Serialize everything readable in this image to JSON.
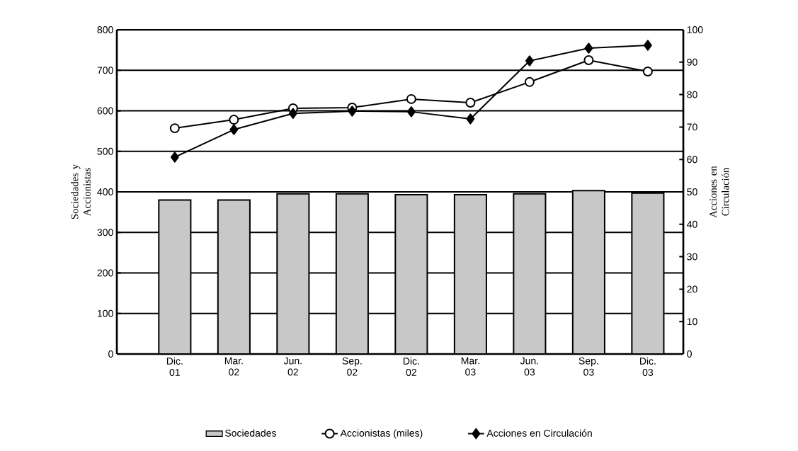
{
  "chart_data": {
    "type": "bar",
    "categories": [
      "Dic. 01",
      "Mar. 02",
      "Jun. 02",
      "Sep. 02",
      "Dic. 02",
      "Mar. 03",
      "Jun. 03",
      "Sep. 03",
      "Dic. 03"
    ],
    "ylabel": "Sociedades y Accionistas",
    "y2label": "Acciones en Circulación",
    "ylim": [
      0,
      800
    ],
    "yticks": [
      0,
      100,
      200,
      300,
      400,
      500,
      600,
      700,
      800
    ],
    "y2lim": [
      0,
      100
    ],
    "y2ticks": [
      0,
      10,
      20,
      30,
      40,
      50,
      60,
      70,
      80,
      90,
      100
    ],
    "grid": "y",
    "legend": "bottom",
    "series": [
      {
        "name": "Sociedades",
        "color": "#c8c8c8",
        "values": [
          380,
          380,
          395,
          395,
          393,
          393,
          395,
          403,
          397
        ]
      },
      {
        "name": "Accionistas (miles)",
        "type": "line",
        "color": "#000000",
        "marker": "circle",
        "values": [
          557,
          578,
          606,
          608,
          629,
          620,
          671,
          725,
          697
        ]
      },
      {
        "name": "Acciones en Circulación",
        "type": "line",
        "color": "#000000",
        "marker": "diamond",
        "axis": "y2",
        "values": [
          60.7,
          69.2,
          74.2,
          74.9,
          74.7,
          72.5,
          90.4,
          94.3,
          95.2
        ]
      }
    ]
  }
}
